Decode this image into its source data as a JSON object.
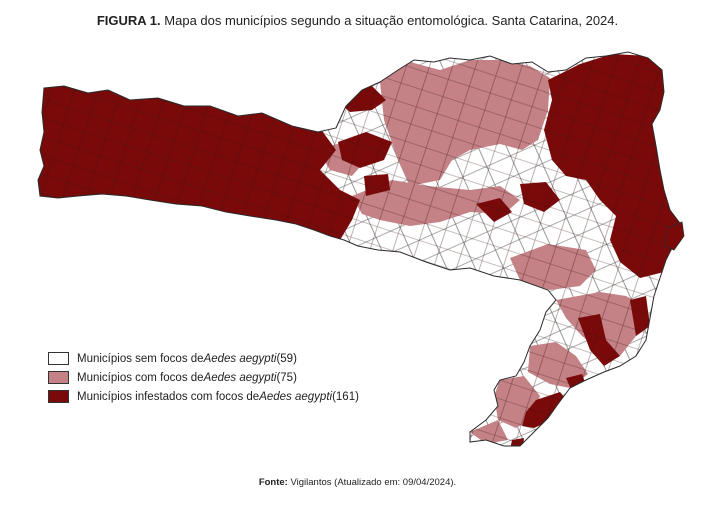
{
  "header": {
    "figure_label": "FIGURA 1.",
    "title": "Mapa dos municípios segundo a situação entomológica. Santa Catarina, 2024."
  },
  "legend": {
    "items": [
      {
        "prefix": "Municípios sem focos de ",
        "species": "Aedes aegypti",
        "count": " (59)",
        "color": "#ffffff"
      },
      {
        "prefix": "Municípios com focos de ",
        "species": "Aedes aegypti",
        "count": " (75)",
        "color": "#c48286"
      },
      {
        "prefix": "Municípios infestados com focos de ",
        "species": "Aedes aegypti",
        "count": " (161)",
        "color": "#7a0a0a"
      }
    ]
  },
  "footer": {
    "source_label": "Fonte:",
    "source_text": " Vigilantos (Atualizado em: 09/04/2024)."
  },
  "colors": {
    "none": "#ffffff",
    "with_foci": "#c48286",
    "infested": "#7a0a0a",
    "borders": "#3a3a3a"
  }
}
